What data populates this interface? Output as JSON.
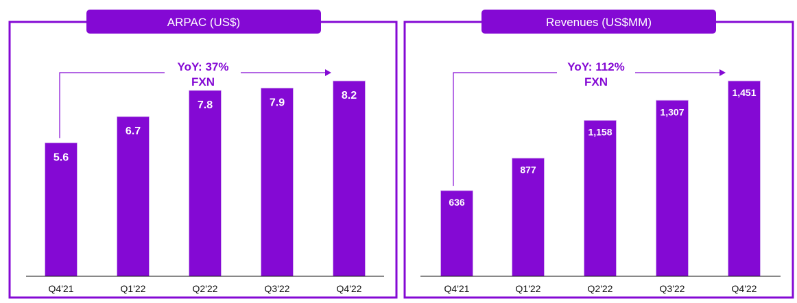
{
  "accent_color": "#8409d4",
  "chart_data": [
    {
      "type": "bar",
      "title": "ARPAC (US$)",
      "categories": [
        "Q4'21",
        "Q1'22",
        "Q2'22",
        "Q3'22",
        "Q4'22"
      ],
      "values": [
        5.6,
        6.7,
        7.8,
        7.9,
        8.2
      ],
      "data_labels": [
        "5.6",
        "6.7",
        "7.8",
        "7.9",
        "8.2"
      ],
      "ylim": [
        0,
        8.2
      ],
      "grid": false,
      "annotation": {
        "line1": "YoY: 37%",
        "line2": "FXN"
      }
    },
    {
      "type": "bar",
      "title": "Revenues (US$MM)",
      "categories": [
        "Q4'21",
        "Q1'22",
        "Q2'22",
        "Q3'22",
        "Q4'22"
      ],
      "values": [
        636,
        877,
        1158,
        1307,
        1451
      ],
      "data_labels": [
        "636",
        "877",
        "1,158",
        "1,307",
        "1,451"
      ],
      "ylim": [
        0,
        1451
      ],
      "grid": false,
      "annotation": {
        "line1": "YoY: 112%",
        "line2": "FXN"
      }
    }
  ]
}
